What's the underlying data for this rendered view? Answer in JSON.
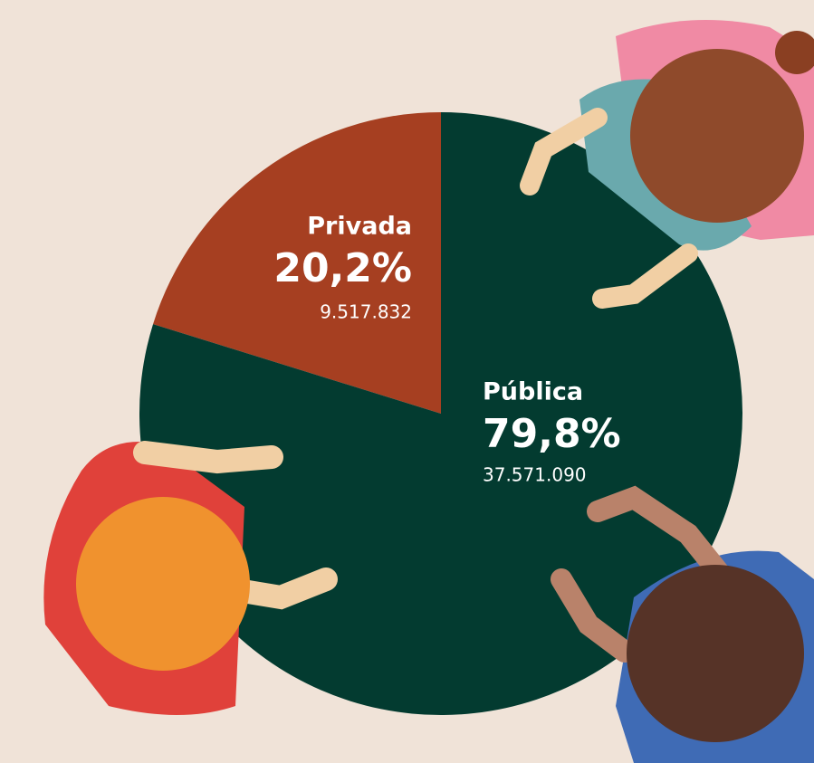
{
  "chart_data": {
    "type": "pie",
    "categories": [
      "Privada",
      "Pública"
    ],
    "values": [
      20.2,
      79.8
    ],
    "value_labels": [
      "20,2%",
      "79,8%"
    ],
    "counts": [
      9517832,
      37571090
    ],
    "count_labels": [
      "9.517.832",
      "37.571.090"
    ],
    "colors": [
      "#a63f21",
      "#033b30"
    ]
  }
}
